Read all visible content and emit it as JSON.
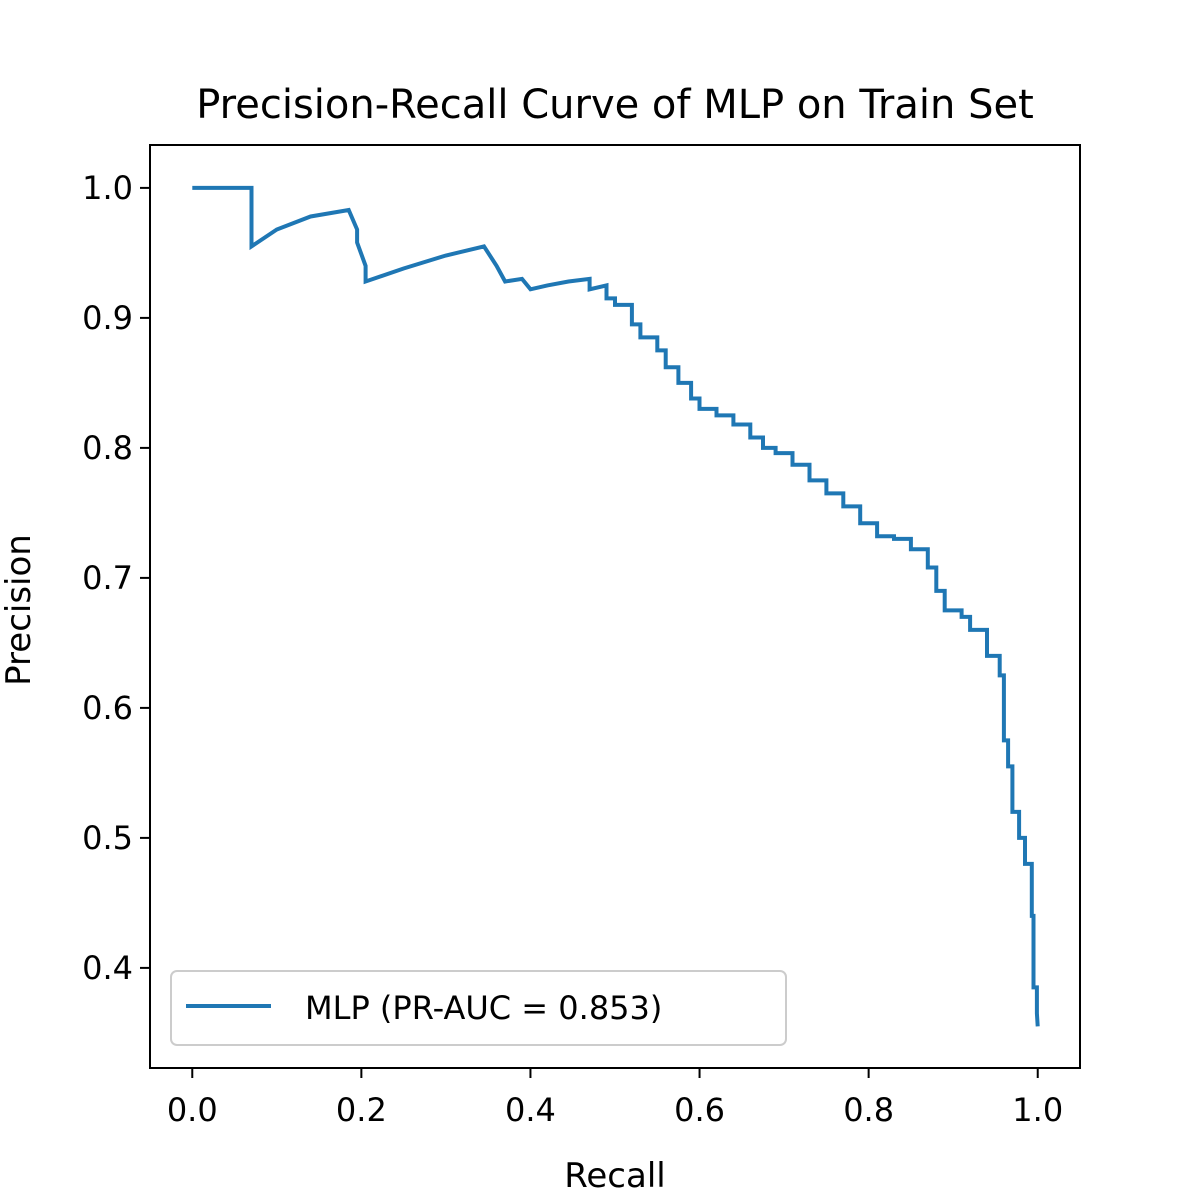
{
  "chart_data": {
    "type": "line",
    "title": "Precision-Recall Curve of MLP on Train Set",
    "xlabel": "Recall",
    "ylabel": "Precision",
    "xlim": [
      -0.05,
      1.05
    ],
    "ylim": [
      0.323,
      1.033
    ],
    "xticks": [
      0.0,
      0.2,
      0.4,
      0.6,
      0.8,
      1.0
    ],
    "xtick_labels": [
      "0.0",
      "0.2",
      "0.4",
      "0.6",
      "0.8",
      "1.0"
    ],
    "yticks": [
      0.4,
      0.5,
      0.6,
      0.7,
      0.8,
      0.9,
      1.0
    ],
    "ytick_labels": [
      "0.4",
      "0.5",
      "0.6",
      "0.7",
      "0.8",
      "0.9",
      "1.0"
    ],
    "legend_position": "lower left",
    "grid": false,
    "series": [
      {
        "name": "MLP (PR-AUC = 0.853)",
        "color": "#1f77b4",
        "x": [
          0.0,
          0.07,
          0.07,
          0.1,
          0.14,
          0.185,
          0.185,
          0.195,
          0.195,
          0.205,
          0.205,
          0.25,
          0.3,
          0.345,
          0.345,
          0.36,
          0.36,
          0.37,
          0.37,
          0.39,
          0.39,
          0.4,
          0.4,
          0.42,
          0.42,
          0.445,
          0.47,
          0.47,
          0.49,
          0.49,
          0.5,
          0.5,
          0.52,
          0.52,
          0.53,
          0.53,
          0.55,
          0.55,
          0.56,
          0.56,
          0.575,
          0.575,
          0.59,
          0.59,
          0.6,
          0.6,
          0.62,
          0.62,
          0.64,
          0.64,
          0.66,
          0.66,
          0.675,
          0.675,
          0.69,
          0.69,
          0.71,
          0.71,
          0.73,
          0.73,
          0.75,
          0.75,
          0.77,
          0.77,
          0.79,
          0.79,
          0.81,
          0.81,
          0.83,
          0.83,
          0.85,
          0.85,
          0.87,
          0.87,
          0.88,
          0.88,
          0.89,
          0.89,
          0.91,
          0.91,
          0.92,
          0.92,
          0.94,
          0.94,
          0.955,
          0.955,
          0.96,
          0.96,
          0.965,
          0.965,
          0.97,
          0.97,
          0.978,
          0.978,
          0.985,
          0.985,
          0.993,
          0.993,
          0.995,
          0.995,
          0.999,
          0.999,
          1.0
        ],
        "y": [
          1.0,
          1.0,
          0.955,
          0.968,
          0.978,
          0.983,
          0.983,
          0.968,
          0.958,
          0.94,
          0.928,
          0.938,
          0.948,
          0.955,
          0.955,
          0.94,
          0.94,
          0.928,
          0.928,
          0.93,
          0.93,
          0.922,
          0.922,
          0.925,
          0.925,
          0.928,
          0.93,
          0.922,
          0.925,
          0.915,
          0.915,
          0.91,
          0.91,
          0.895,
          0.895,
          0.885,
          0.885,
          0.875,
          0.875,
          0.862,
          0.862,
          0.85,
          0.85,
          0.838,
          0.838,
          0.83,
          0.83,
          0.825,
          0.825,
          0.818,
          0.818,
          0.808,
          0.808,
          0.8,
          0.8,
          0.796,
          0.796,
          0.787,
          0.787,
          0.775,
          0.775,
          0.765,
          0.765,
          0.755,
          0.755,
          0.742,
          0.742,
          0.732,
          0.732,
          0.73,
          0.73,
          0.722,
          0.722,
          0.708,
          0.708,
          0.69,
          0.69,
          0.675,
          0.675,
          0.67,
          0.67,
          0.66,
          0.66,
          0.64,
          0.64,
          0.625,
          0.625,
          0.575,
          0.575,
          0.555,
          0.555,
          0.52,
          0.52,
          0.5,
          0.5,
          0.48,
          0.48,
          0.44,
          0.44,
          0.385,
          0.385,
          0.365,
          0.355
        ]
      }
    ]
  }
}
